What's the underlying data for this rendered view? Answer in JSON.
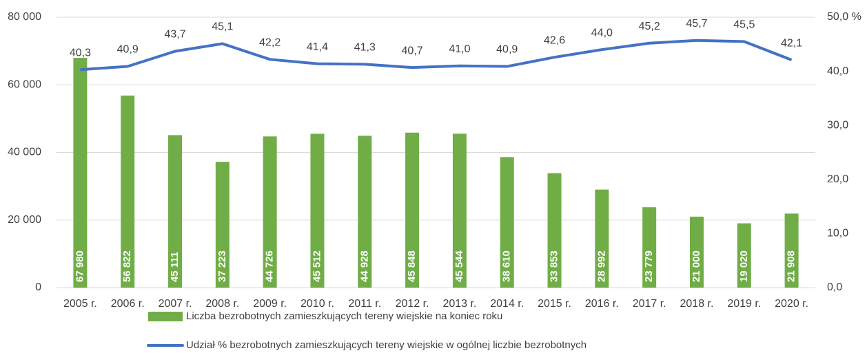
{
  "chart_data": {
    "type": "bar_line",
    "categories": [
      "2005 r.",
      "2006 r.",
      "2007 r.",
      "2008 r.",
      "2009 r.",
      "2010 r.",
      "2011 r.",
      "2012 r.",
      "2013 r.",
      "2014 r.",
      "2015 r.",
      "2016 r.",
      "2017 r.",
      "2018 r.",
      "2019 r.",
      "2020 r."
    ],
    "series": [
      {
        "name": "Liczba bezrobotnych zamieszkujących tereny wiejskie na koniec roku",
        "type": "bar",
        "color": "#70ad47",
        "values": [
          67980,
          56822,
          45111,
          37223,
          44726,
          45512,
          44928,
          45848,
          45544,
          38610,
          33853,
          28992,
          23779,
          21000,
          19020,
          21908
        ],
        "value_labels": [
          "67 980",
          "56 822",
          "45 111",
          "37 223",
          "44 726",
          "45 512",
          "44 928",
          "45 848",
          "45 544",
          "38 610",
          "33 853",
          "28 992",
          "23 779",
          "21 000",
          "19 020",
          "21 908"
        ]
      },
      {
        "name": "Udział % bezrobotnych zamieszkujących tereny wiejskie w ogólnej liczbie bezrobotnych",
        "type": "line",
        "axis": "y2",
        "color": "#4472c4",
        "values": [
          40.3,
          40.9,
          43.7,
          45.1,
          42.2,
          41.4,
          41.3,
          40.7,
          41.0,
          40.9,
          42.6,
          44.0,
          45.2,
          45.7,
          45.5,
          42.1
        ],
        "value_labels": [
          "40,3",
          "40,9",
          "43,7",
          "45,1",
          "42,2",
          "41,4",
          "41,3",
          "40,7",
          "41,0",
          "40,9",
          "42,6",
          "44,0",
          "45,2",
          "45,7",
          "45,5",
          "42,1"
        ]
      }
    ],
    "ylim": [
      0,
      80000
    ],
    "yticks": [
      0,
      {
        "value": 20000,
        "label": "20 000"
      },
      {
        "value": 40000,
        "label": "40 000"
      },
      {
        "value": 60000,
        "label": "60 000"
      },
      {
        "value": 80000,
        "label": "80 000"
      }
    ],
    "y2lim": [
      0,
      50
    ],
    "y2ticks": [
      {
        "value": 0,
        "label": "0,0"
      },
      {
        "value": 10,
        "label": "10,0"
      },
      {
        "value": 20,
        "label": "20,0"
      },
      {
        "value": 30,
        "label": "30,0"
      },
      {
        "value": 40,
        "label": "40,0"
      },
      {
        "value": 50,
        "label": "50,0 %"
      }
    ],
    "grid": true,
    "legend": "bottom"
  }
}
